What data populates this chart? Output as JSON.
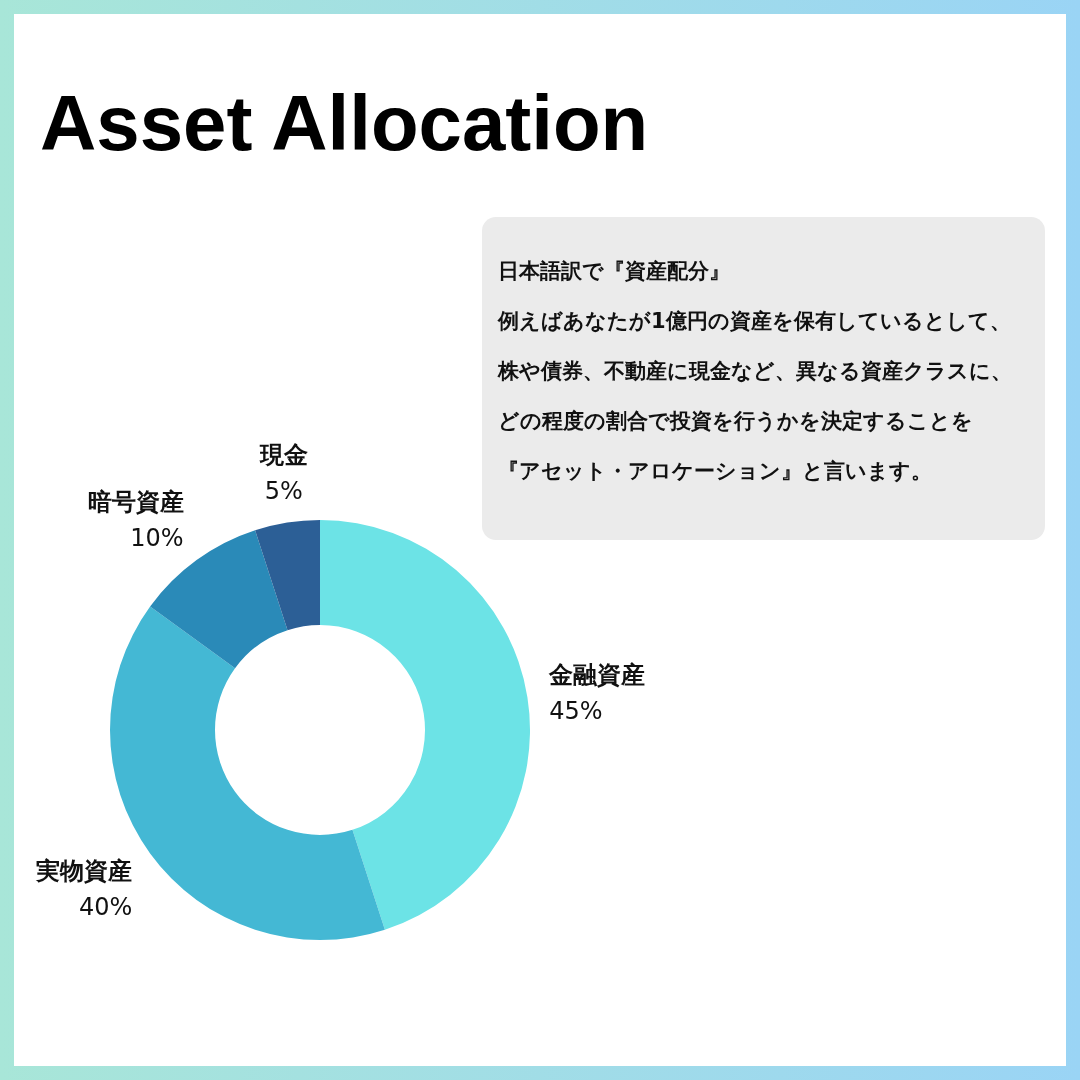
{
  "chart_data": {
    "type": "donut",
    "title": "Asset Allocation",
    "categories": [
      "金融資産",
      "実物資産",
      "暗号資産",
      "現金"
    ],
    "values": [
      45,
      40,
      10,
      5
    ],
    "colors": [
      "#6ce3e6",
      "#44b8d4",
      "#2a8ab8",
      "#2c5f96"
    ],
    "value_labels": [
      "45%",
      "40%",
      "10%",
      "5%"
    ],
    "annotations": [
      "日本語訳で『資産配分』",
      "例えばあなたが1億円の資産を保有しているとして、",
      "株や債券、不動産に現金など、異なる資産クラスに、",
      "どの程度の割合で投資を行うかを決定することを",
      "『アセット・アロケーション』と言います。"
    ]
  }
}
